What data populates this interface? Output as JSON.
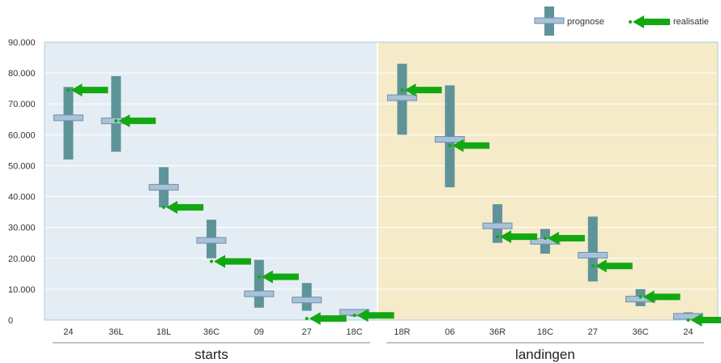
{
  "chart_data": {
    "type": "range-bar with marker",
    "ylim": [
      0,
      90000
    ],
    "ytick_labels": [
      "0",
      "10.000",
      "20.000",
      "30.000",
      "40.000",
      "50.000",
      "60.000",
      "70.000",
      "80.000",
      "90.000"
    ],
    "legend": {
      "prognose": "prognose",
      "realisatie": "realisatie",
      "position": "top-right"
    },
    "colors": {
      "range_bar": "#5e9499",
      "prognose_marker": "#a9c2d8",
      "realisatie_arrow": "#12a812",
      "starts_bg": "#e5edf4",
      "landingen_bg": "#f5ebc8",
      "frame": "#a8cde0"
    },
    "groups": [
      {
        "name": "starts",
        "categories": [
          "24",
          "36L",
          "18L",
          "36C",
          "09",
          "27",
          "18C"
        ],
        "range_low": [
          52000,
          54500,
          36500,
          20000,
          4000,
          3000,
          1200
        ],
        "range_high": [
          75500,
          79000,
          49500,
          32500,
          19500,
          12000,
          3300
        ],
        "prognose": [
          65500,
          64500,
          43000,
          25800,
          8500,
          6500,
          2500
        ],
        "realisatie": [
          74500,
          64500,
          36500,
          19000,
          14000,
          500,
          1500
        ]
      },
      {
        "name": "landingen",
        "categories": [
          "18R",
          "06",
          "36R",
          "18C",
          "27",
          "36C",
          "24"
        ],
        "range_low": [
          60000,
          43000,
          25000,
          21500,
          12500,
          4500,
          500
        ],
        "range_high": [
          83000,
          76000,
          37500,
          29500,
          33500,
          10000,
          2500
        ],
        "prognose": [
          72000,
          58500,
          30500,
          25500,
          21000,
          6800,
          1200
        ],
        "realisatie": [
          74500,
          56500,
          27000,
          26500,
          17500,
          7500,
          0
        ]
      }
    ]
  }
}
